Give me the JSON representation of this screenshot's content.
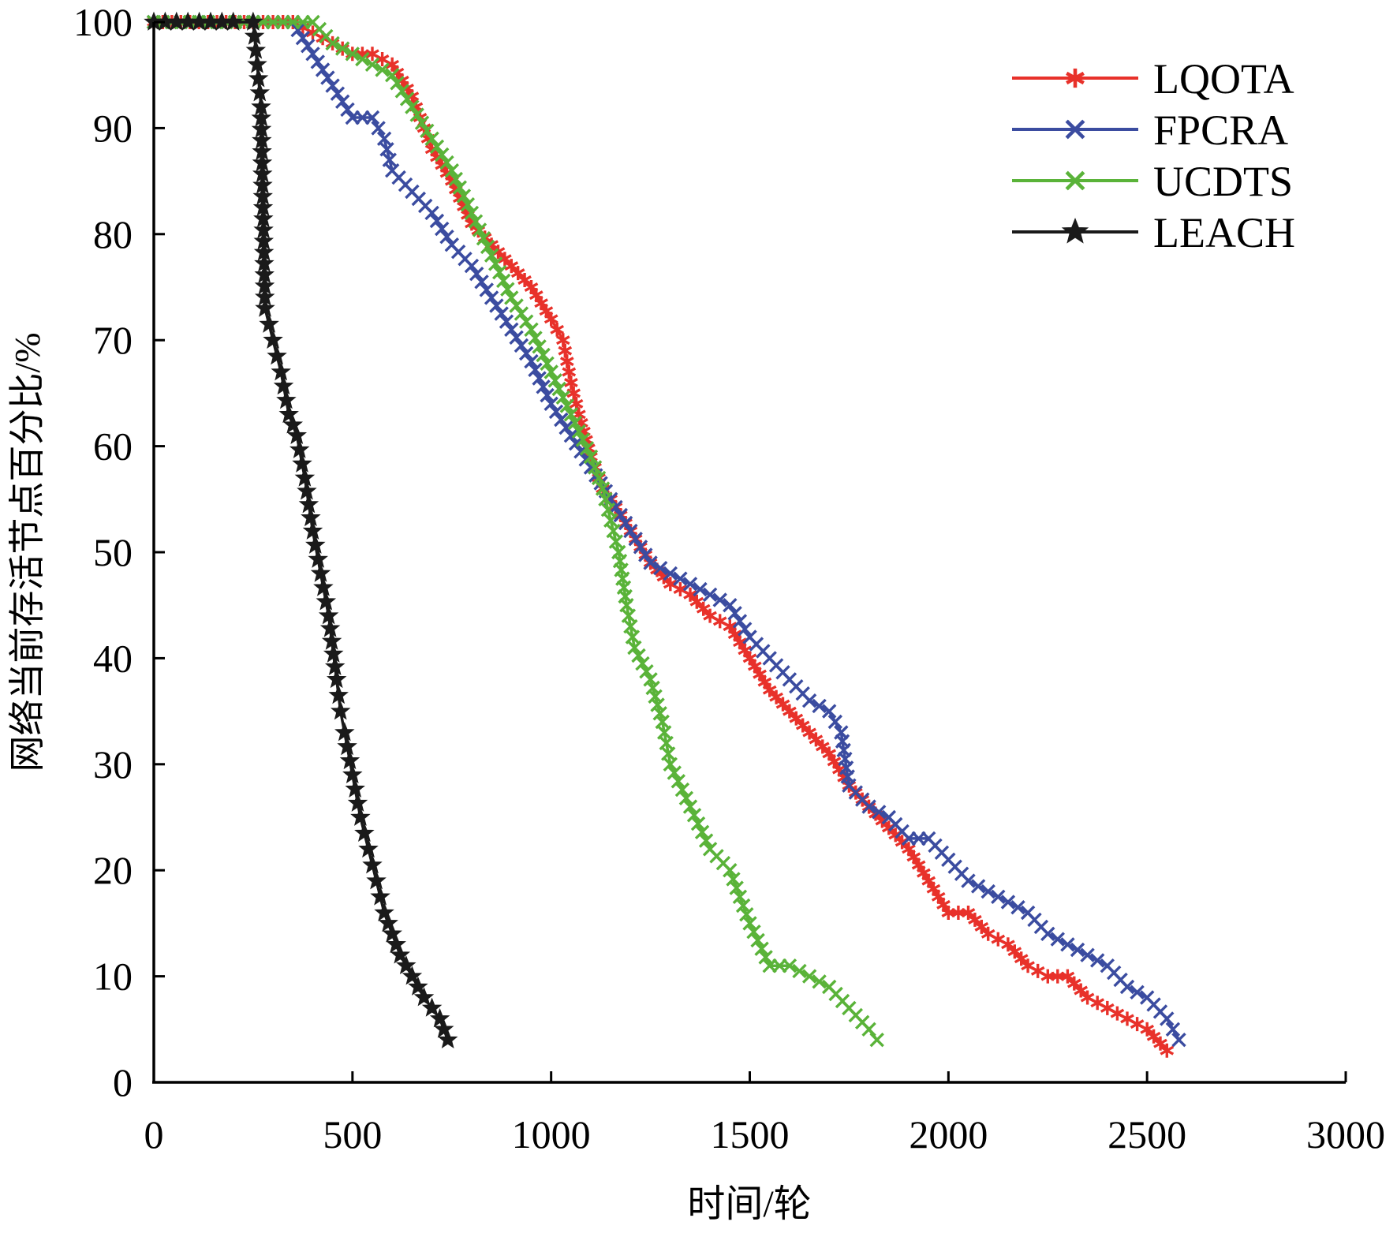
{
  "chart_data": {
    "type": "line",
    "title": "",
    "xlabel": "时间/轮",
    "ylabel": "网络当前存活节点百分比/%",
    "xlim": [
      0,
      3000
    ],
    "ylim": [
      0,
      100
    ],
    "x_ticks": [
      0,
      500,
      1000,
      1500,
      2000,
      2500,
      3000
    ],
    "y_ticks": [
      0,
      10,
      20,
      30,
      40,
      50,
      60,
      70,
      80,
      90,
      100
    ],
    "grid": false,
    "legend_position": "top-right",
    "series": [
      {
        "name": "LQOTA",
        "color": "#e8312a",
        "marker": "asterisk",
        "points": [
          [
            0,
            100
          ],
          [
            250,
            100
          ],
          [
            350,
            100
          ],
          [
            400,
            99
          ],
          [
            450,
            98
          ],
          [
            500,
            97
          ],
          [
            550,
            97
          ],
          [
            600,
            96
          ],
          [
            650,
            93
          ],
          [
            680,
            90
          ],
          [
            700,
            88
          ],
          [
            750,
            85
          ],
          [
            800,
            81
          ],
          [
            850,
            79
          ],
          [
            900,
            77
          ],
          [
            950,
            75
          ],
          [
            1000,
            72
          ],
          [
            1030,
            70
          ],
          [
            1050,
            66
          ],
          [
            1070,
            63
          ],
          [
            1100,
            59
          ],
          [
            1130,
            56
          ],
          [
            1150,
            55
          ],
          [
            1200,
            52
          ],
          [
            1250,
            49
          ],
          [
            1300,
            47
          ],
          [
            1350,
            46
          ],
          [
            1400,
            44
          ],
          [
            1450,
            43
          ],
          [
            1500,
            40
          ],
          [
            1550,
            37
          ],
          [
            1600,
            35
          ],
          [
            1650,
            33
          ],
          [
            1700,
            31
          ],
          [
            1750,
            28
          ],
          [
            1800,
            26
          ],
          [
            1850,
            24
          ],
          [
            1900,
            22
          ],
          [
            1950,
            19
          ],
          [
            2000,
            16
          ],
          [
            2050,
            16
          ],
          [
            2100,
            14
          ],
          [
            2150,
            13
          ],
          [
            2200,
            11
          ],
          [
            2250,
            10
          ],
          [
            2300,
            10
          ],
          [
            2350,
            8
          ],
          [
            2400,
            7
          ],
          [
            2450,
            6
          ],
          [
            2500,
            5
          ],
          [
            2550,
            3
          ]
        ]
      },
      {
        "name": "FPCRA",
        "color": "#3b4ca0",
        "marker": "x",
        "points": [
          [
            0,
            100
          ],
          [
            250,
            100
          ],
          [
            350,
            100
          ],
          [
            400,
            97
          ],
          [
            450,
            94
          ],
          [
            500,
            91
          ],
          [
            550,
            91
          ],
          [
            580,
            89
          ],
          [
            600,
            86
          ],
          [
            650,
            84
          ],
          [
            700,
            82
          ],
          [
            750,
            79
          ],
          [
            800,
            77
          ],
          [
            850,
            74
          ],
          [
            900,
            71
          ],
          [
            950,
            68
          ],
          [
            1000,
            64
          ],
          [
            1050,
            61
          ],
          [
            1100,
            58
          ],
          [
            1150,
            55
          ],
          [
            1200,
            52
          ],
          [
            1250,
            49
          ],
          [
            1300,
            48
          ],
          [
            1350,
            47
          ],
          [
            1400,
            46
          ],
          [
            1450,
            45
          ],
          [
            1500,
            42
          ],
          [
            1550,
            40
          ],
          [
            1600,
            38
          ],
          [
            1650,
            36
          ],
          [
            1700,
            35
          ],
          [
            1730,
            33
          ],
          [
            1750,
            28
          ],
          [
            1800,
            26
          ],
          [
            1850,
            25
          ],
          [
            1900,
            23
          ],
          [
            1950,
            23
          ],
          [
            2000,
            21
          ],
          [
            2050,
            19
          ],
          [
            2100,
            18
          ],
          [
            2150,
            17
          ],
          [
            2200,
            16
          ],
          [
            2250,
            14
          ],
          [
            2300,
            13
          ],
          [
            2350,
            12
          ],
          [
            2400,
            11
          ],
          [
            2450,
            9
          ],
          [
            2500,
            8
          ],
          [
            2550,
            6
          ],
          [
            2580,
            4
          ]
        ]
      },
      {
        "name": "UCDTS",
        "color": "#5ab339",
        "marker": "x",
        "points": [
          [
            0,
            100
          ],
          [
            250,
            100
          ],
          [
            400,
            100
          ],
          [
            450,
            98
          ],
          [
            500,
            97
          ],
          [
            550,
            96
          ],
          [
            600,
            95
          ],
          [
            650,
            92
          ],
          [
            700,
            89
          ],
          [
            750,
            86
          ],
          [
            800,
            82
          ],
          [
            850,
            78
          ],
          [
            900,
            74
          ],
          [
            950,
            71
          ],
          [
            1000,
            67
          ],
          [
            1050,
            63
          ],
          [
            1100,
            59
          ],
          [
            1130,
            56
          ],
          [
            1150,
            53
          ],
          [
            1170,
            50
          ],
          [
            1190,
            45
          ],
          [
            1210,
            41
          ],
          [
            1250,
            38
          ],
          [
            1280,
            34
          ],
          [
            1300,
            30
          ],
          [
            1350,
            26
          ],
          [
            1400,
            22
          ],
          [
            1450,
            20
          ],
          [
            1500,
            15
          ],
          [
            1550,
            11
          ],
          [
            1600,
            11
          ],
          [
            1650,
            10
          ],
          [
            1700,
            9
          ],
          [
            1750,
            7
          ],
          [
            1800,
            5
          ],
          [
            1820,
            4
          ]
        ]
      },
      {
        "name": "LEACH",
        "color": "#1a1a1a",
        "marker": "star",
        "points": [
          [
            0,
            100
          ],
          [
            200,
            100
          ],
          [
            250,
            100
          ],
          [
            260,
            96
          ],
          [
            270,
            92
          ],
          [
            280,
            73
          ],
          [
            300,
            70
          ],
          [
            320,
            67
          ],
          [
            340,
            63
          ],
          [
            360,
            61
          ],
          [
            380,
            57
          ],
          [
            400,
            52
          ],
          [
            420,
            48
          ],
          [
            440,
            44
          ],
          [
            460,
            38
          ],
          [
            470,
            35
          ],
          [
            480,
            33
          ],
          [
            500,
            29
          ],
          [
            520,
            25
          ],
          [
            540,
            22
          ],
          [
            560,
            19
          ],
          [
            580,
            16
          ],
          [
            600,
            14
          ],
          [
            620,
            12
          ],
          [
            650,
            10
          ],
          [
            680,
            8
          ],
          [
            700,
            7
          ],
          [
            720,
            6
          ],
          [
            740,
            4
          ]
        ]
      }
    ]
  }
}
